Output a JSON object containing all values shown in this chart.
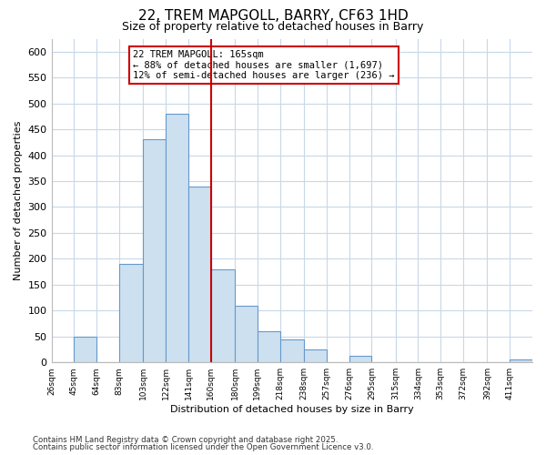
{
  "title": "22, TREM MAPGOLL, BARRY, CF63 1HD",
  "subtitle": "Size of property relative to detached houses in Barry",
  "xlabel": "Distribution of detached houses by size in Barry",
  "ylabel": "Number of detached properties",
  "bin_edges": [
    26,
    45,
    64,
    83,
    103,
    122,
    141,
    160,
    180,
    199,
    218,
    238,
    257,
    276,
    295,
    315,
    334,
    353,
    372,
    392,
    411
  ],
  "bin_labels": [
    "26sqm",
    "45sqm",
    "64sqm",
    "83sqm",
    "103sqm",
    "122sqm",
    "141sqm",
    "160sqm",
    "180sqm",
    "199sqm",
    "218sqm",
    "238sqm",
    "257sqm",
    "276sqm",
    "295sqm",
    "315sqm",
    "334sqm",
    "353sqm",
    "372sqm",
    "392sqm",
    "411sqm"
  ],
  "bin_values": [
    0,
    50,
    0,
    190,
    430,
    480,
    340,
    180,
    110,
    60,
    45,
    25,
    0,
    12,
    0,
    0,
    0,
    0,
    0,
    0,
    5
  ],
  "bar_color": "#cce0f0",
  "bar_edge_color": "#6699cc",
  "marker_value": 160,
  "marker_label": "22 TREM MAPGOLL: 165sqm",
  "annotation_line1": "← 88% of detached houses are smaller (1,697)",
  "annotation_line2": "12% of semi-detached houses are larger (236) →",
  "marker_color": "#cc0000",
  "footnote1": "Contains HM Land Registry data © Crown copyright and database right 2025.",
  "footnote2": "Contains public sector information licensed under the Open Government Licence v3.0.",
  "ylim": [
    0,
    625
  ],
  "yticks": [
    0,
    50,
    100,
    150,
    200,
    250,
    300,
    350,
    400,
    450,
    500,
    550,
    600
  ],
  "background_color": "#ffffff",
  "grid_color": "#c8d8e8"
}
